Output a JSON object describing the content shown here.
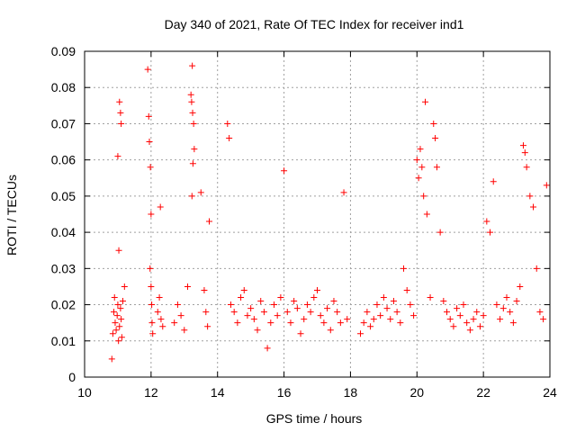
{
  "chart_data": {
    "type": "scatter",
    "title": "Day 340 of 2021, Rate Of TEC Index for receiver ind1",
    "xlabel": "GPS time / hours",
    "ylabel": "ROTI / TECUs",
    "xlim": [
      10,
      24
    ],
    "ylim": [
      0,
      0.09
    ],
    "x_ticks": [
      10,
      12,
      14,
      16,
      18,
      20,
      22,
      24
    ],
    "y_ticks": [
      0,
      0.01,
      0.02,
      0.03,
      0.04,
      0.05,
      0.06,
      0.07,
      0.08,
      0.09
    ],
    "x_tick_labels": [
      "10",
      "12",
      "14",
      "16",
      "18",
      "20",
      "22",
      "24"
    ],
    "y_tick_labels": [
      "0",
      "0.01",
      "0.02",
      "0.03",
      "0.04",
      "0.05",
      "0.06",
      "0.07",
      "0.08",
      "0.09"
    ],
    "grid": true,
    "marker": "+",
    "color": "#ff0000",
    "series": [
      {
        "x": [
          10.82,
          10.85,
          10.88,
          10.9,
          10.92,
          10.95,
          10.98,
          11.0,
          11.02,
          11.05,
          11.08,
          11.1,
          11.12,
          11.15,
          11.2,
          11.05,
          11.08,
          11.1,
          11.0,
          11.03,
          11.9,
          11.93,
          11.95,
          11.98,
          12.0,
          12.03,
          12.05,
          11.97,
          12.0,
          12.02,
          12.2,
          12.25,
          12.3,
          12.35,
          12.28,
          12.7,
          12.8,
          12.9,
          13.0,
          13.1,
          13.2,
          13.22,
          13.25,
          13.28,
          13.3,
          13.24,
          13.26,
          13.23,
          13.5,
          13.6,
          13.7,
          13.65,
          13.75,
          14.3,
          14.35,
          14.4,
          14.5,
          14.6,
          14.7,
          14.8,
          14.9,
          15.0,
          15.1,
          15.2,
          15.3,
          15.4,
          15.5,
          15.6,
          15.7,
          15.8,
          15.9,
          16.0,
          16.1,
          16.2,
          16.3,
          16.4,
          16.5,
          16.6,
          16.7,
          16.8,
          16.9,
          17.0,
          17.1,
          17.2,
          17.3,
          17.4,
          17.5,
          17.6,
          17.7,
          17.8,
          17.9,
          18.3,
          18.4,
          18.5,
          18.6,
          18.7,
          18.8,
          18.9,
          19.0,
          19.1,
          19.2,
          19.3,
          19.4,
          19.5,
          19.6,
          19.7,
          19.8,
          19.9,
          20.0,
          20.05,
          20.1,
          20.15,
          20.2,
          20.25,
          20.3,
          20.4,
          20.5,
          20.55,
          20.6,
          20.7,
          20.8,
          20.9,
          21.0,
          21.1,
          21.2,
          21.3,
          21.4,
          21.5,
          21.6,
          21.7,
          21.8,
          21.9,
          22.0,
          22.1,
          22.2,
          22.3,
          22.4,
          22.5,
          22.6,
          22.7,
          22.8,
          22.9,
          23.0,
          23.1,
          23.2,
          23.25,
          23.3,
          23.4,
          23.5,
          23.6,
          23.7,
          23.8,
          23.9
        ],
        "y": [
          0.005,
          0.012,
          0.018,
          0.022,
          0.015,
          0.013,
          0.017,
          0.02,
          0.01,
          0.014,
          0.019,
          0.016,
          0.011,
          0.021,
          0.025,
          0.076,
          0.073,
          0.07,
          0.061,
          0.035,
          0.085,
          0.072,
          0.065,
          0.058,
          0.045,
          0.015,
          0.012,
          0.03,
          0.025,
          0.02,
          0.018,
          0.022,
          0.016,
          0.014,
          0.047,
          0.015,
          0.02,
          0.017,
          0.013,
          0.025,
          0.078,
          0.076,
          0.073,
          0.07,
          0.063,
          0.086,
          0.059,
          0.05,
          0.051,
          0.024,
          0.014,
          0.018,
          0.043,
          0.07,
          0.066,
          0.02,
          0.018,
          0.015,
          0.022,
          0.024,
          0.017,
          0.019,
          0.016,
          0.013,
          0.021,
          0.018,
          0.008,
          0.015,
          0.02,
          0.017,
          0.022,
          0.057,
          0.018,
          0.015,
          0.021,
          0.019,
          0.012,
          0.016,
          0.02,
          0.018,
          0.022,
          0.024,
          0.017,
          0.015,
          0.019,
          0.013,
          0.021,
          0.018,
          0.015,
          0.051,
          0.016,
          0.012,
          0.015,
          0.018,
          0.014,
          0.016,
          0.02,
          0.017,
          0.022,
          0.019,
          0.016,
          0.021,
          0.018,
          0.015,
          0.03,
          0.024,
          0.02,
          0.017,
          0.06,
          0.055,
          0.063,
          0.058,
          0.05,
          0.076,
          0.045,
          0.022,
          0.07,
          0.066,
          0.058,
          0.04,
          0.021,
          0.018,
          0.016,
          0.014,
          0.019,
          0.017,
          0.02,
          0.015,
          0.013,
          0.016,
          0.018,
          0.014,
          0.017,
          0.043,
          0.04,
          0.054,
          0.02,
          0.016,
          0.019,
          0.022,
          0.018,
          0.015,
          0.021,
          0.025,
          0.064,
          0.062,
          0.058,
          0.05,
          0.047,
          0.03,
          0.018,
          0.016,
          0.053
        ]
      }
    ]
  }
}
